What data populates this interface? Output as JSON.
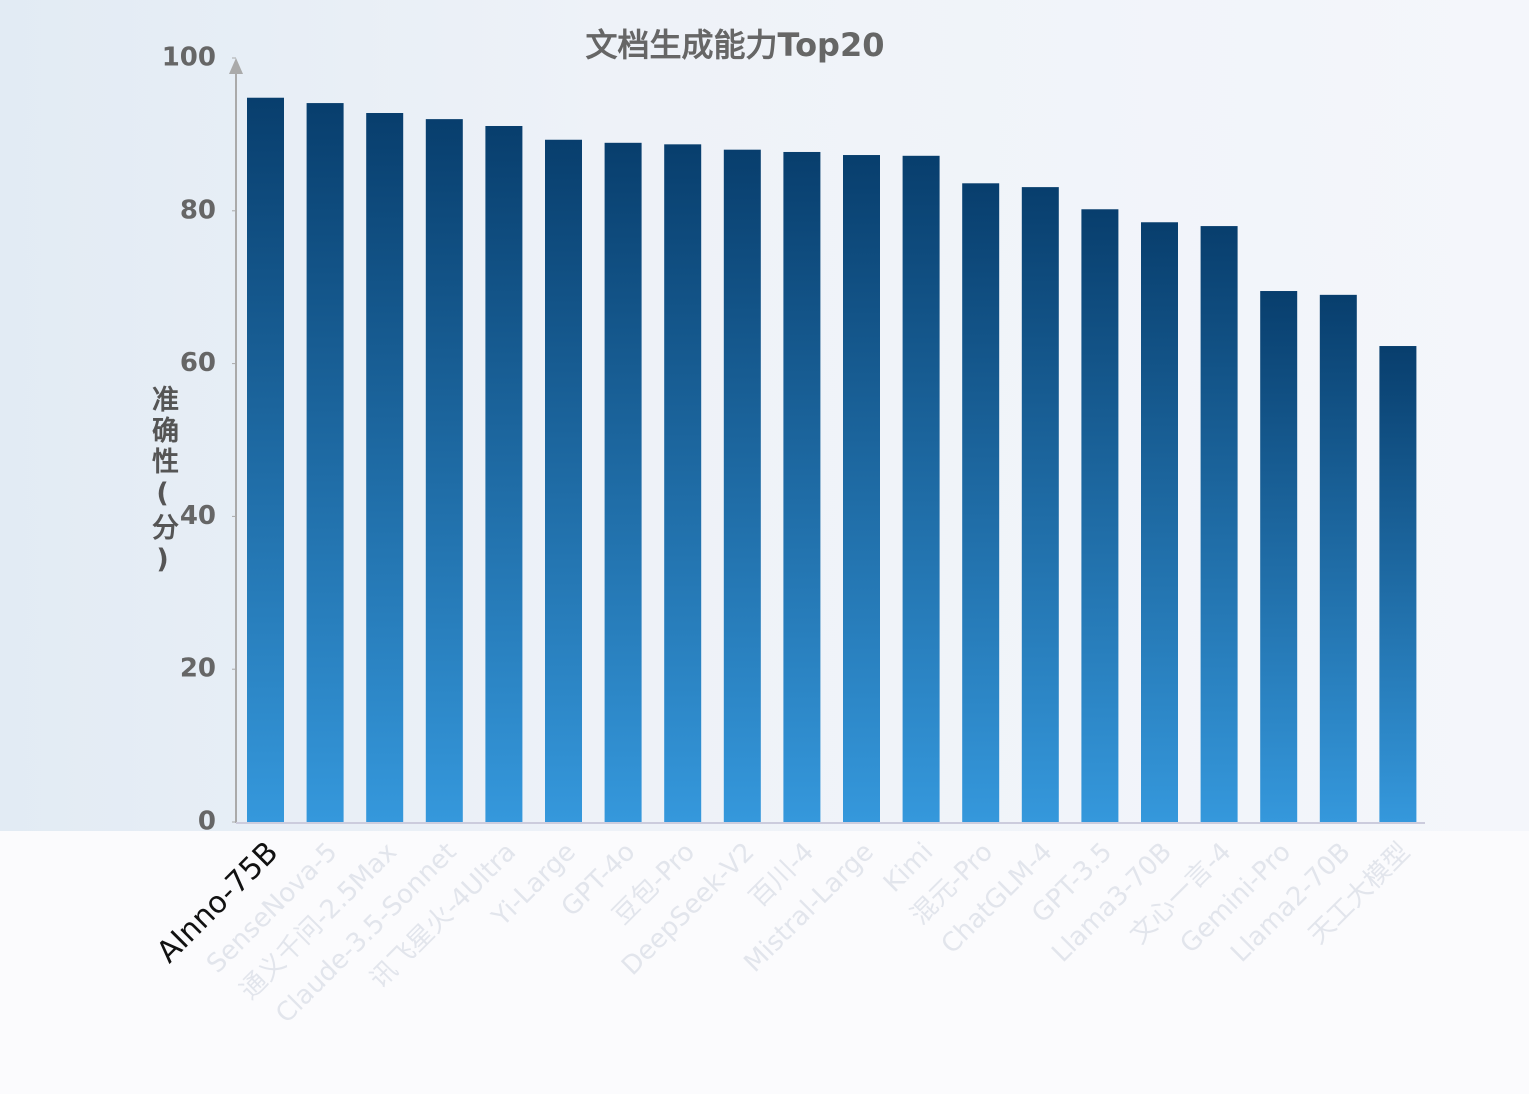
{
  "chart_data": {
    "type": "bar",
    "title": "文档生成能力Top20",
    "y_label": "准确性(分)",
    "categories": [
      "AInno-75B",
      "SenseNova-5",
      "通义千问-2.5Max",
      "Claude-3.5-Sonnet",
      "讯飞星火-4Ultra",
      "Yi-Large",
      "GPT-4o",
      "豆包-Pro",
      "DeepSeek-V2",
      "百川-4",
      "Mistral-Large",
      "Kimi",
      "混元-Pro",
      "ChatGLM-4",
      "GPT-3.5",
      "Llama3-70B",
      "文心一言-4",
      "Gemini-Pro",
      "Llama2-70B",
      "天工大模型"
    ],
    "values": [
      94.8,
      94.1,
      92.8,
      92.0,
      91.1,
      89.3,
      88.9,
      88.7,
      88.0,
      87.7,
      87.3,
      87.2,
      83.6,
      83.1,
      80.2,
      78.5,
      78.0,
      69.5,
      69.0,
      62.3
    ],
    "colors": [
      "#083e6d",
      "#3598dc"
    ],
    "ylim": [
      0,
      100
    ],
    "yticks": [
      0,
      20,
      40,
      60,
      80,
      100
    ],
    "grid": false
  }
}
